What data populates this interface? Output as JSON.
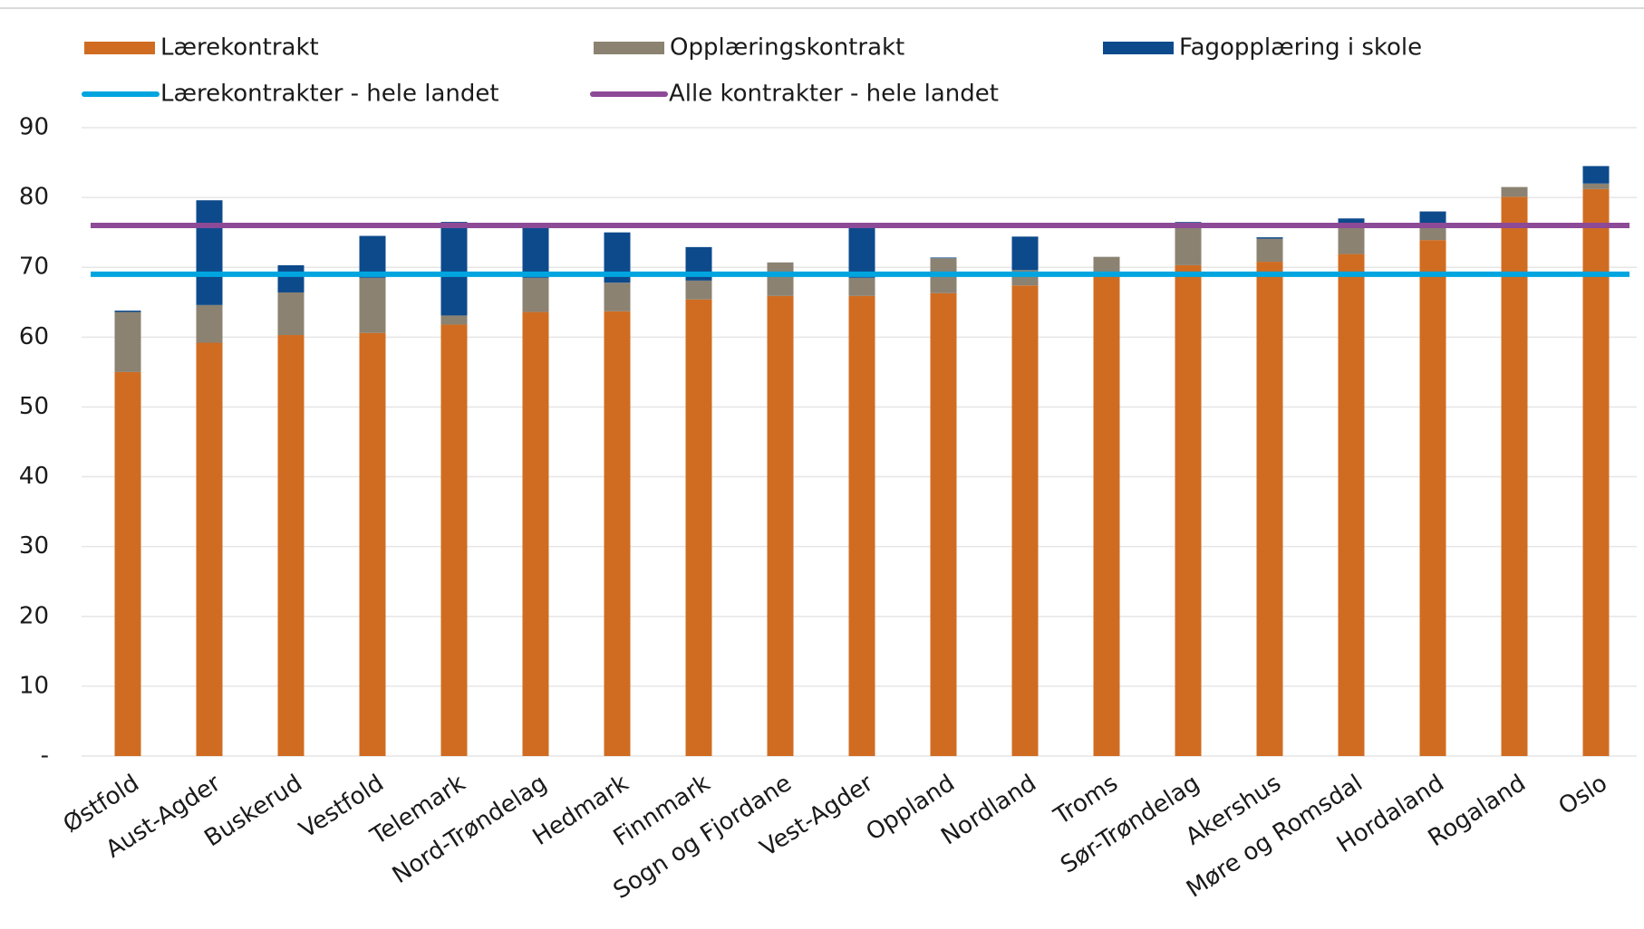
{
  "chart_data": {
    "type": "bar",
    "stacked": true,
    "categories": [
      "Østfold",
      "Aust-Agder",
      "Buskerud",
      "Vestfold",
      "Telemark",
      "Nord-Trøndelag",
      "Hedmark",
      "Finnmark",
      "Sogn og Fjordane",
      "Vest-Agder",
      "Oppland",
      "Nordland",
      "Troms",
      "Sør-Trøndelag",
      "Akershus",
      "Møre og Romsdal",
      "Hordaland",
      "Rogaland",
      "Oslo"
    ],
    "series": [
      {
        "name": "Lærekontrakt",
        "color": "#d06c21",
        "values": [
          55,
          59.2,
          60.3,
          60.6,
          61.8,
          63.6,
          63.7,
          65.4,
          65.9,
          65.9,
          66.3,
          67.4,
          68.7,
          70.3,
          70.8,
          71.9,
          73.9,
          80.1,
          81.2
        ]
      },
      {
        "name": "Opplæringskontrakt",
        "color": "#8b8272",
        "values": [
          8.6,
          5.4,
          6.1,
          7.9,
          1.3,
          4.9,
          4.1,
          2.7,
          4.8,
          2.6,
          5,
          2.2,
          2.8,
          6.1,
          3.3,
          3.9,
          2.3,
          1.4,
          0.8
        ]
      },
      {
        "name": "Fagopplæring i skole",
        "color": "#0d4a8c",
        "values": [
          0.2,
          15,
          3.9,
          6,
          13.4,
          7.5,
          7.2,
          4.8,
          0,
          7.4,
          0.1,
          4.8,
          0,
          0.1,
          0.2,
          1.2,
          1.8,
          0,
          2.5
        ]
      }
    ],
    "reference_lines": [
      {
        "name": "Lærekontrakter - hele landet",
        "color": "#00a5e0",
        "value": 69
      },
      {
        "name": "Alle kontrakter - hele landet",
        "color": "#8d4a97",
        "value": 76
      }
    ],
    "ylim": [
      0,
      90
    ],
    "yticks": [
      {
        "value": 0,
        "label": "-"
      },
      10,
      20,
      30,
      40,
      50,
      60,
      70,
      80,
      90
    ],
    "grid": true
  }
}
